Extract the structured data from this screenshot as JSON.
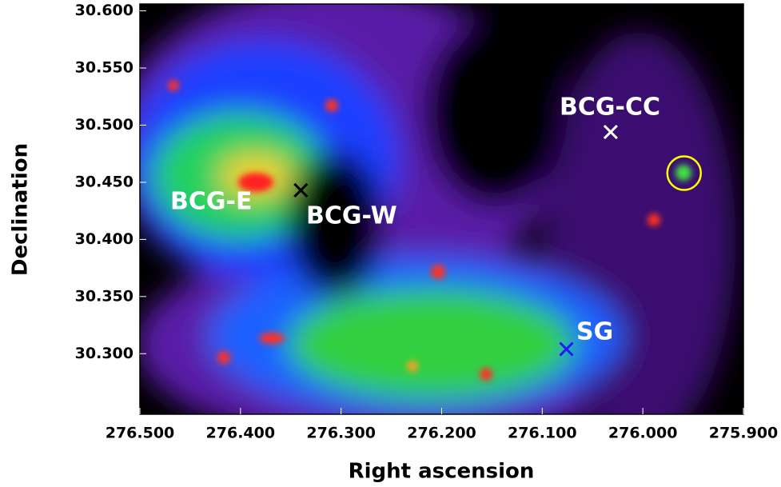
{
  "chart_data": {
    "type": "image",
    "xlabel": "Right ascension",
    "ylabel": "Declination",
    "xlim": [
      276.5,
      275.9
    ],
    "ylim": [
      30.247,
      30.606
    ],
    "xticks": [
      {
        "value": 276.5,
        "label": "276.500"
      },
      {
        "value": 276.4,
        "label": "276.400"
      },
      {
        "value": 276.3,
        "label": "276.300"
      },
      {
        "value": 276.2,
        "label": "276.200"
      },
      {
        "value": 276.1,
        "label": "276.100"
      },
      {
        "value": 276.0,
        "label": "276.000"
      },
      {
        "value": 275.9,
        "label": "275.900"
      }
    ],
    "yticks": [
      {
        "value": 30.3,
        "label": "30.300"
      },
      {
        "value": 30.35,
        "label": "30.350"
      },
      {
        "value": 30.4,
        "label": "30.400"
      },
      {
        "value": 30.45,
        "label": "30.450"
      },
      {
        "value": 30.5,
        "label": "30.500"
      },
      {
        "value": 30.55,
        "label": "30.550"
      },
      {
        "value": 30.6,
        "label": "30.600"
      }
    ],
    "annotations": [
      "BCG-E",
      "BCG-W",
      "BCG-CC",
      "SG"
    ],
    "markers": [
      {
        "shape": "cross",
        "color": "#000000",
        "ra": 276.34,
        "dec": 30.443
      },
      {
        "shape": "cross",
        "color": "#ffffff",
        "ra": 276.032,
        "dec": 30.494
      },
      {
        "shape": "cross",
        "color": "#1a1aff",
        "ra": 276.076,
        "dec": 30.304
      },
      {
        "shape": "circle",
        "color": "#ffff00",
        "ra": 275.959,
        "dec": 30.458
      }
    ]
  }
}
